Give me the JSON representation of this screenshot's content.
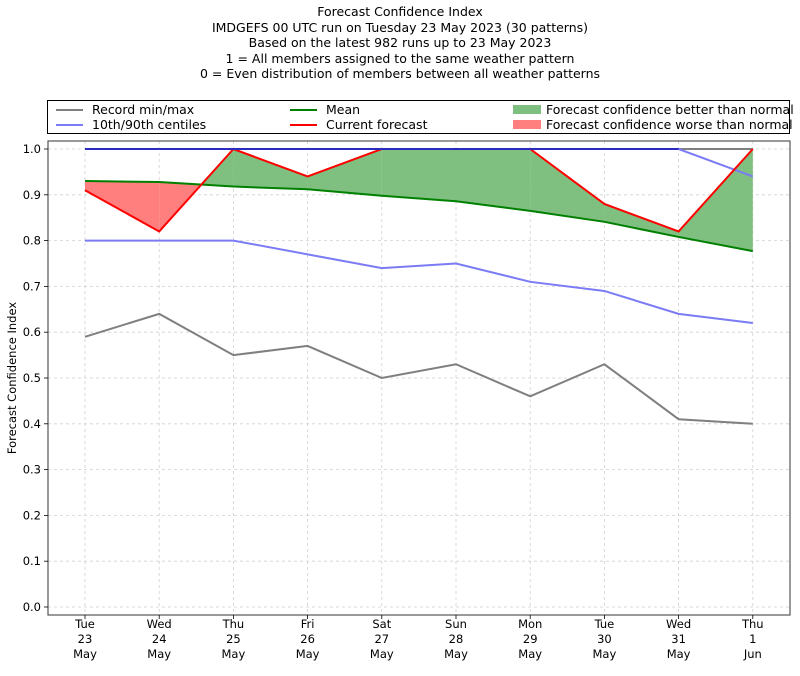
{
  "chart_data": {
    "type": "line",
    "title_lines": [
      "Forecast Confidence Index",
      "IMDGEFS 00 UTC run on Tuesday 23 May 2023 (30 patterns)",
      "Based on the latest 982 runs up to 23 May 2023",
      "1 = All members assigned to the same weather pattern",
      "0 = Even distribution of members between all weather patterns"
    ],
    "xlabel": "",
    "ylabel": "Forecast Confidence Index",
    "ylim": [
      0.0,
      1.0
    ],
    "yticks": [
      "0.0",
      "0.1",
      "0.2",
      "0.3",
      "0.4",
      "0.5",
      "0.6",
      "0.7",
      "0.8",
      "0.9",
      "1.0"
    ],
    "grid": true,
    "legend_position": "top (above plot, 3 columns)",
    "categories": [
      [
        "Tue",
        "23",
        "May"
      ],
      [
        "Wed",
        "24",
        "May"
      ],
      [
        "Thu",
        "25",
        "May"
      ],
      [
        "Fri",
        "26",
        "May"
      ],
      [
        "Sat",
        "27",
        "May"
      ],
      [
        "Sun",
        "28",
        "May"
      ],
      [
        "Mon",
        "29",
        "May"
      ],
      [
        "Tue",
        "30",
        "May"
      ],
      [
        "Wed",
        "31",
        "May"
      ],
      [
        "Thu",
        "1",
        "Jun"
      ]
    ],
    "series": [
      {
        "name": "Record max",
        "legend": "Record min/max",
        "color": "#7f7f7f",
        "values": [
          1.0,
          1.0,
          1.0,
          1.0,
          1.0,
          1.0,
          1.0,
          1.0,
          1.0,
          1.0
        ]
      },
      {
        "name": "Record min",
        "legend": "Record min/max",
        "color": "#7f7f7f",
        "values": [
          0.59,
          0.64,
          0.55,
          0.57,
          0.5,
          0.53,
          0.46,
          0.53,
          0.41,
          0.4
        ]
      },
      {
        "name": "90th centile",
        "legend": "10th/90th centiles",
        "color": "#7b7bf5",
        "values": [
          1.0,
          1.0,
          1.0,
          1.0,
          1.0,
          1.0,
          1.0,
          1.0,
          1.0,
          0.94
        ]
      },
      {
        "name": "10th centile",
        "legend": "10th/90th centiles",
        "color": "#7b7bf5",
        "values": [
          0.8,
          0.8,
          0.8,
          0.77,
          0.74,
          0.75,
          0.71,
          0.69,
          0.64,
          0.62
        ]
      },
      {
        "name": "Mean",
        "legend": "Mean",
        "color": "#008000",
        "values": [
          0.93,
          0.928,
          0.918,
          0.912,
          0.898,
          0.886,
          0.865,
          0.841,
          0.808,
          0.777
        ]
      },
      {
        "name": "Current forecast",
        "legend": "Current forecast",
        "color": "#ff0000",
        "values": [
          0.91,
          0.82,
          1.0,
          0.94,
          1.0,
          1.0,
          1.0,
          0.88,
          0.82,
          1.0
        ]
      }
    ],
    "fills": [
      {
        "name": "Forecast confidence better than normal",
        "color": "#7fbf7f"
      },
      {
        "name": "Forecast confidence worse than normal",
        "color": "#ff7f7f"
      }
    ]
  },
  "legend": {
    "record": "Record min/max",
    "centiles": "10th/90th centiles",
    "mean": "Mean",
    "current": "Current forecast",
    "better": "Forecast confidence better than normal",
    "worse": "Forecast confidence worse than normal"
  }
}
